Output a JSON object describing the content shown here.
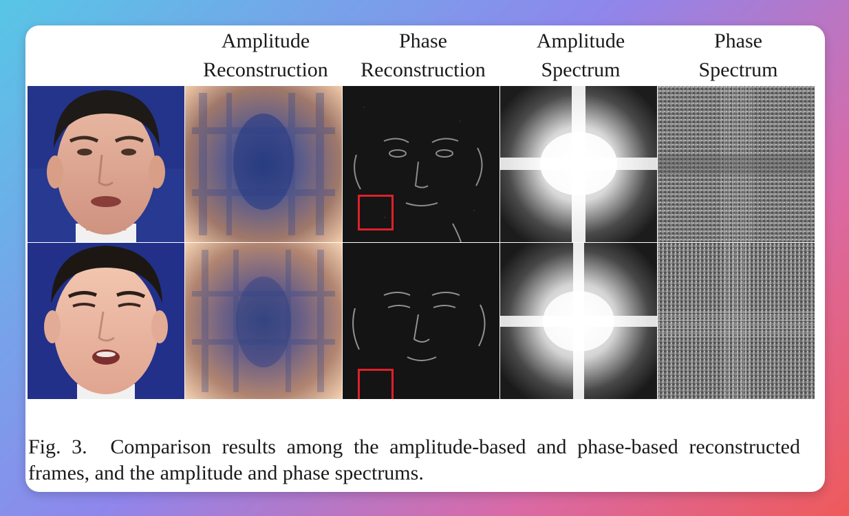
{
  "figure": {
    "columns": [
      {
        "line1": "Amplitude",
        "line2": "Reconstruction"
      },
      {
        "line1": "Phase",
        "line2": "Reconstruction"
      },
      {
        "line1": "Amplitude",
        "line2": "Spectrum"
      },
      {
        "line1": "Phase",
        "line2": "Spectrum"
      }
    ],
    "caption": {
      "label": "Fig. 3.",
      "text": "Comparison results among the amplitude-based and phase-based reconstructed frames, and the amplitude and phase spectrums."
    }
  }
}
